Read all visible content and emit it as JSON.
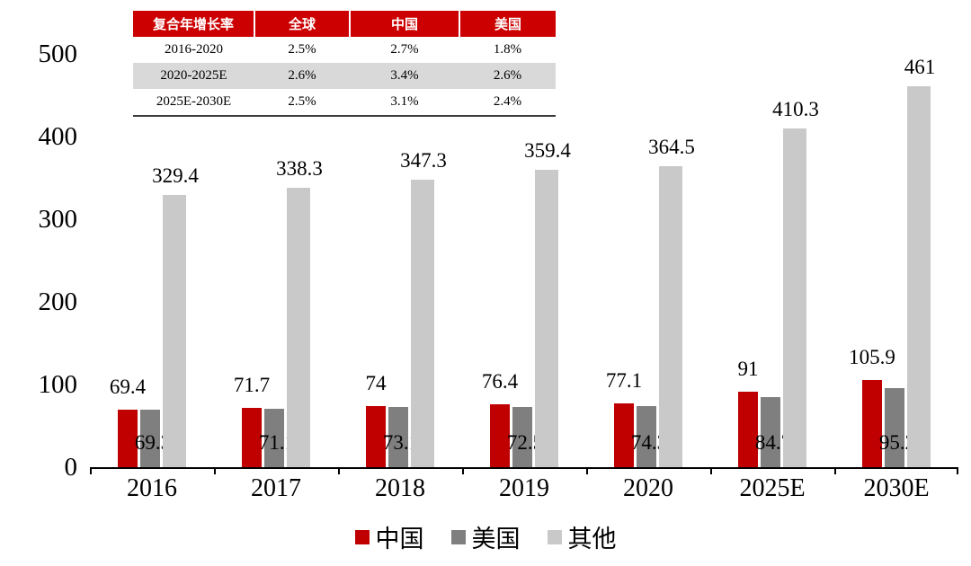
{
  "chart_data": {
    "type": "bar",
    "title": "",
    "categories": [
      "2016",
      "2017",
      "2018",
      "2019",
      "2020",
      "2025E",
      "2030E"
    ],
    "series": [
      {
        "key": "china",
        "name": "中国",
        "color": "#c00000",
        "values": [
          69.4,
          71.7,
          74,
          76.4,
          77.1,
          91,
          105.9
        ]
      },
      {
        "key": "usa",
        "name": "美国",
        "color": "#7f7f7f",
        "values": [
          69.3,
          71.1,
          73.1,
          72.5,
          74.3,
          84.7,
          95.2
        ]
      },
      {
        "key": "others",
        "name": "其他",
        "color": "#c9c9c9",
        "values": [
          329.4,
          338.3,
          347.3,
          359.4,
          364.5,
          410.3,
          461
        ]
      }
    ],
    "xlabel": "",
    "ylabel": "",
    "ylim": [
      0,
      500
    ],
    "yticks": [
      0,
      100,
      200,
      300,
      400,
      500
    ],
    "grid": false,
    "legend_position": "bottom"
  },
  "inset_table": {
    "header_bg": "#cc0000",
    "alt_row_bg": "#d9d9d9",
    "columns": [
      "复合年增长率",
      "全球",
      "中国",
      "美国"
    ],
    "rows": [
      {
        "label": "2016-2020",
        "values": [
          "2.5%",
          "2.7%",
          "1.8%"
        ]
      },
      {
        "label": "2020-2025E",
        "values": [
          "2.6%",
          "3.4%",
          "2.6%"
        ]
      },
      {
        "label": "2025E-2030E",
        "values": [
          "2.5%",
          "3.1%",
          "2.4%"
        ]
      }
    ]
  },
  "legend": {
    "items": [
      {
        "label": "中国",
        "color": "#c00000"
      },
      {
        "label": "美国",
        "color": "#7f7f7f"
      },
      {
        "label": "其他",
        "color": "#c9c9c9"
      }
    ]
  }
}
